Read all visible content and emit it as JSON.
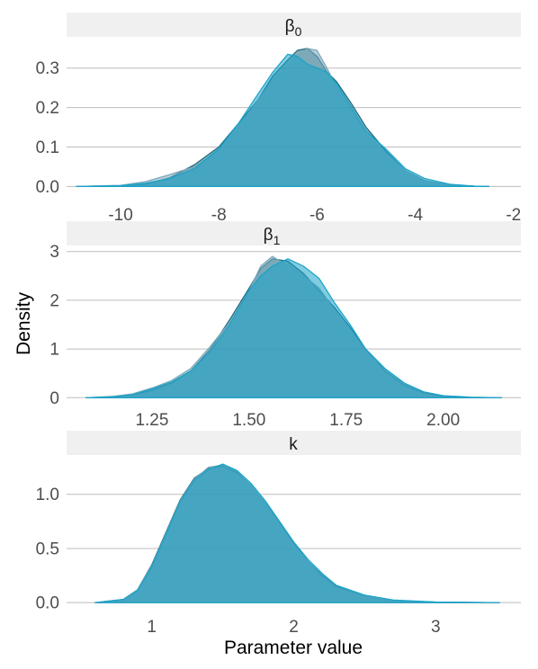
{
  "axis_titles": {
    "x": "Parameter value",
    "y": "Density"
  },
  "chart_data": [
    {
      "type": "area",
      "panel_label": "β₀",
      "panel_label_base": "β",
      "panel_label_sub": "0",
      "xlim": [
        -11.1,
        -1.85
      ],
      "ylim": [
        -0.015,
        0.37
      ],
      "x_ticks": [
        -10,
        -8,
        -6,
        -4,
        -2
      ],
      "x_tick_labels": [
        "-10",
        "-8",
        "-6",
        "-4",
        "-2"
      ],
      "y_ticks": [
        0.0,
        0.1,
        0.2,
        0.3
      ],
      "y_tick_labels": [
        "0.0",
        "0.1",
        "0.2",
        "0.3"
      ],
      "series": [
        {
          "color": "#1a6a80",
          "x": [
            -10.9,
            -10.0,
            -9.5,
            -9.0,
            -8.5,
            -8.0,
            -7.6,
            -7.2,
            -6.9,
            -6.6,
            -6.4,
            -6.2,
            -6.0,
            -5.8,
            -5.6,
            -5.3,
            -5.0,
            -4.6,
            -4.2,
            -3.8,
            -3.3,
            -2.8,
            -2.5
          ],
          "y": [
            0,
            0.002,
            0.006,
            0.022,
            0.055,
            0.1,
            0.16,
            0.22,
            0.28,
            0.32,
            0.345,
            0.35,
            0.33,
            0.29,
            0.265,
            0.21,
            0.15,
            0.09,
            0.04,
            0.015,
            0.004,
            0.001,
            0
          ]
        },
        {
          "color": "#7aa6b8",
          "x": [
            -10.9,
            -10.0,
            -9.5,
            -9.0,
            -8.5,
            -8.0,
            -7.6,
            -7.2,
            -6.9,
            -6.6,
            -6.4,
            -6.2,
            -6.0,
            -5.8,
            -5.6,
            -5.3,
            -5.0,
            -4.6,
            -4.2,
            -3.8,
            -3.3,
            -2.8,
            -2.5
          ],
          "y": [
            0,
            0.003,
            0.012,
            0.03,
            0.05,
            0.09,
            0.15,
            0.22,
            0.27,
            0.3,
            0.33,
            0.35,
            0.345,
            0.3,
            0.25,
            0.2,
            0.13,
            0.085,
            0.04,
            0.015,
            0.004,
            0.001,
            0
          ]
        },
        {
          "color": "#19a3c9",
          "x": [
            -10.9,
            -10.0,
            -9.5,
            -9.0,
            -8.5,
            -8.0,
            -7.6,
            -7.2,
            -6.9,
            -6.6,
            -6.4,
            -6.2,
            -6.0,
            -5.8,
            -5.6,
            -5.3,
            -5.0,
            -4.6,
            -4.2,
            -3.8,
            -3.3,
            -2.8,
            -2.5
          ],
          "y": [
            0,
            0.002,
            0.008,
            0.02,
            0.045,
            0.095,
            0.16,
            0.235,
            0.29,
            0.335,
            0.33,
            0.31,
            0.3,
            0.29,
            0.26,
            0.2,
            0.14,
            0.095,
            0.045,
            0.02,
            0.006,
            0.001,
            0
          ]
        }
      ]
    },
    {
      "type": "area",
      "panel_label": "β₁",
      "panel_label_base": "β",
      "panel_label_sub": "1",
      "xlim": [
        1.03,
        2.2
      ],
      "ylim": [
        -0.05,
        3.05
      ],
      "x_ticks": [
        1.25,
        1.5,
        1.75,
        2.0
      ],
      "x_tick_labels": [
        "1.25",
        "1.50",
        "1.75",
        "2.00"
      ],
      "y_ticks": [
        0,
        1,
        2,
        3
      ],
      "y_tick_labels": [
        "0",
        "1",
        "2",
        "3"
      ],
      "series": [
        {
          "color": "#1a6a80",
          "x": [
            1.08,
            1.15,
            1.2,
            1.25,
            1.3,
            1.35,
            1.4,
            1.45,
            1.5,
            1.53,
            1.56,
            1.6,
            1.64,
            1.68,
            1.72,
            1.76,
            1.8,
            1.85,
            1.9,
            1.95,
            2.0,
            2.07,
            2.15
          ],
          "y": [
            0,
            0.02,
            0.06,
            0.15,
            0.3,
            0.55,
            1.0,
            1.6,
            2.25,
            2.65,
            2.85,
            2.8,
            2.55,
            2.2,
            1.85,
            1.45,
            1.0,
            0.55,
            0.25,
            0.1,
            0.03,
            0.005,
            0
          ]
        },
        {
          "color": "#7aa6b8",
          "x": [
            1.08,
            1.15,
            1.2,
            1.25,
            1.3,
            1.35,
            1.4,
            1.45,
            1.5,
            1.53,
            1.56,
            1.6,
            1.64,
            1.68,
            1.72,
            1.76,
            1.8,
            1.85,
            1.9,
            1.95,
            2.0,
            2.07,
            2.15
          ],
          "y": [
            0,
            0.03,
            0.08,
            0.2,
            0.35,
            0.6,
            1.05,
            1.55,
            2.2,
            2.7,
            2.9,
            2.7,
            2.5,
            2.25,
            1.8,
            1.4,
            0.95,
            0.6,
            0.28,
            0.12,
            0.04,
            0.01,
            0
          ]
        },
        {
          "color": "#19a3c9",
          "x": [
            1.08,
            1.15,
            1.2,
            1.25,
            1.3,
            1.35,
            1.4,
            1.45,
            1.5,
            1.53,
            1.56,
            1.6,
            1.64,
            1.68,
            1.72,
            1.76,
            1.8,
            1.85,
            1.9,
            1.95,
            2.0,
            2.07,
            2.15
          ],
          "y": [
            0,
            0.02,
            0.06,
            0.18,
            0.32,
            0.55,
            0.95,
            1.5,
            2.2,
            2.5,
            2.7,
            2.85,
            2.7,
            2.45,
            1.95,
            1.5,
            1.0,
            0.6,
            0.3,
            0.12,
            0.04,
            0.01,
            0
          ]
        }
      ]
    },
    {
      "type": "area",
      "panel_label": "k",
      "xlim": [
        0.4,
        3.6
      ],
      "ylim": [
        -0.04,
        1.33
      ],
      "x_ticks": [
        1,
        2,
        3
      ],
      "x_tick_labels": [
        "1",
        "2",
        "3"
      ],
      "y_ticks": [
        0.0,
        0.5,
        1.0
      ],
      "y_tick_labels": [
        "0.0",
        "0.5",
        "1.0"
      ],
      "series": [
        {
          "color": "#1a6a80",
          "x": [
            0.6,
            0.8,
            0.9,
            1.0,
            1.1,
            1.2,
            1.3,
            1.4,
            1.5,
            1.6,
            1.7,
            1.8,
            1.9,
            2.0,
            2.1,
            2.2,
            2.3,
            2.5,
            2.7,
            3.0,
            3.45
          ],
          "y": [
            0,
            0.03,
            0.12,
            0.35,
            0.65,
            0.95,
            1.15,
            1.24,
            1.26,
            1.2,
            1.08,
            0.92,
            0.74,
            0.55,
            0.38,
            0.25,
            0.15,
            0.06,
            0.02,
            0.005,
            0
          ]
        },
        {
          "color": "#7aa6b8",
          "x": [
            0.6,
            0.8,
            0.9,
            1.0,
            1.1,
            1.2,
            1.3,
            1.4,
            1.5,
            1.6,
            1.7,
            1.8,
            1.9,
            2.0,
            2.1,
            2.2,
            2.3,
            2.5,
            2.7,
            3.0,
            3.45
          ],
          "y": [
            0,
            0.03,
            0.12,
            0.34,
            0.64,
            0.94,
            1.14,
            1.25,
            1.27,
            1.21,
            1.08,
            0.92,
            0.73,
            0.54,
            0.38,
            0.26,
            0.16,
            0.06,
            0.02,
            0.005,
            0
          ]
        },
        {
          "color": "#19a3c9",
          "x": [
            0.6,
            0.8,
            0.9,
            1.0,
            1.1,
            1.2,
            1.3,
            1.4,
            1.5,
            1.6,
            1.7,
            1.8,
            1.9,
            2.0,
            2.1,
            2.2,
            2.3,
            2.5,
            2.7,
            3.0,
            3.45
          ],
          "y": [
            0,
            0.03,
            0.11,
            0.33,
            0.63,
            0.93,
            1.13,
            1.23,
            1.28,
            1.22,
            1.1,
            0.94,
            0.75,
            0.56,
            0.4,
            0.27,
            0.16,
            0.07,
            0.025,
            0.006,
            0
          ]
        }
      ]
    }
  ]
}
